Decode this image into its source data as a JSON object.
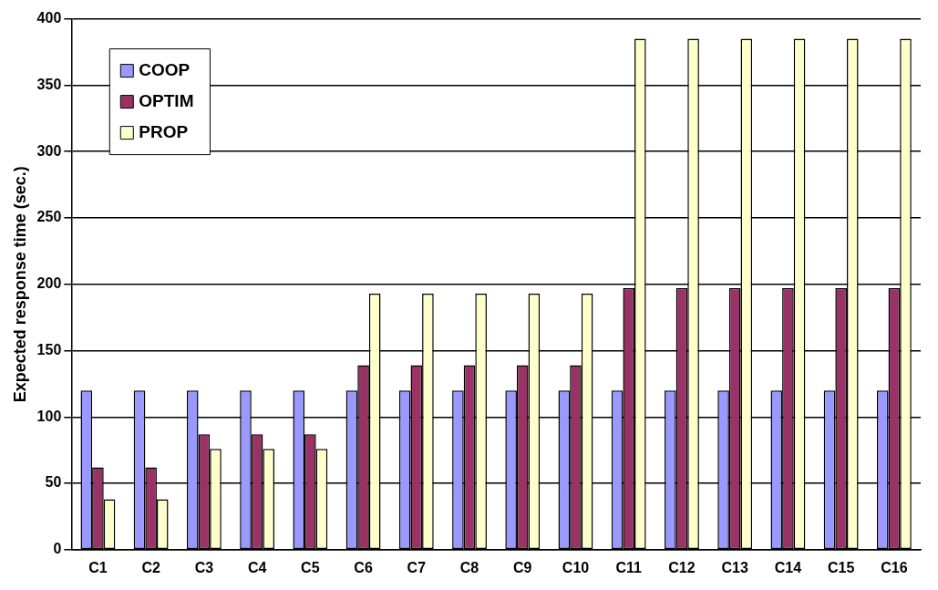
{
  "chart_data": {
    "type": "bar",
    "ylabel": "Expected response time (sec.)",
    "categories": [
      "C1",
      "C2",
      "C3",
      "C4",
      "C5",
      "C6",
      "C7",
      "C8",
      "C9",
      "C10",
      "C11",
      "C12",
      "C13",
      "C14",
      "C15",
      "C16"
    ],
    "series": [
      {
        "name": "COOP",
        "color": "#9999ff",
        "values": [
          120,
          120,
          120,
          120,
          120,
          120,
          120,
          120,
          120,
          120,
          120,
          120,
          120,
          120,
          120,
          120
        ]
      },
      {
        "name": "OPTIM",
        "color": "#993366",
        "values": [
          62,
          62,
          87,
          87,
          87,
          139,
          139,
          139,
          139,
          139,
          197,
          197,
          197,
          197,
          197,
          197
        ]
      },
      {
        "name": "PROP",
        "color": "#ffffcc",
        "values": [
          38,
          38,
          76,
          76,
          76,
          193,
          193,
          193,
          193,
          193,
          385,
          385,
          385,
          385,
          385,
          385
        ]
      }
    ],
    "ylim": [
      0,
      400
    ],
    "yticks": [
      0,
      50,
      100,
      150,
      200,
      250,
      300,
      350,
      400
    ],
    "grid": "y",
    "legend": "top left"
  }
}
